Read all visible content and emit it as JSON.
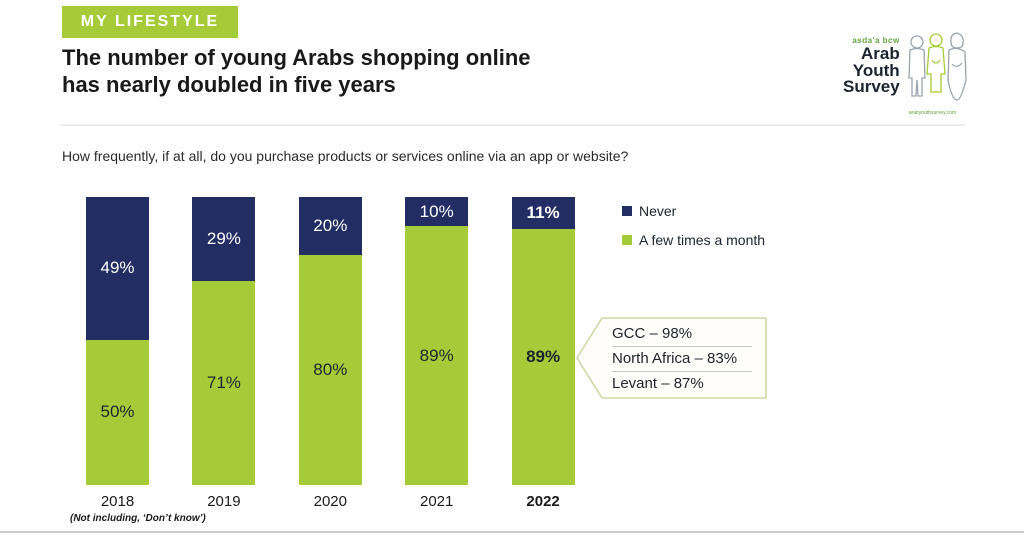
{
  "tag": "MY LIFESTYLE",
  "title_line1": "The number of young Arabs shopping online",
  "title_line2": "has nearly doubled in five years",
  "question": "How frequently, if at all, do you purchase products or services online via an app or website?",
  "logo": {
    "brand": "asda'a bcw",
    "line1": "Arab",
    "line2": "Youth",
    "line3": "Survey",
    "site": "arabyouthsurvey.com"
  },
  "legend": [
    {
      "label": "Never",
      "color": "#222d64"
    },
    {
      "label": "A few times a month",
      "color": "#a5cc38"
    }
  ],
  "chart_data": {
    "type": "bar",
    "stacked": true,
    "categories": [
      "2018",
      "2019",
      "2020",
      "2021",
      "2022"
    ],
    "series": [
      {
        "name": "Never",
        "color": "#222d64",
        "values": [
          49,
          29,
          20,
          10,
          11
        ]
      },
      {
        "name": "A few times a month",
        "color": "#a5cc38",
        "values": [
          50,
          71,
          80,
          89,
          89
        ]
      }
    ],
    "value_suffix": "%",
    "highlight_category": "2022",
    "legend_position": "top-right",
    "grid": false,
    "callout": {
      "target": "2022",
      "lines": [
        "GCC – 98%",
        "North Africa – 83%",
        "Levant – 87%"
      ]
    }
  },
  "footnote": "(Not including, ‘Don’t know’)"
}
